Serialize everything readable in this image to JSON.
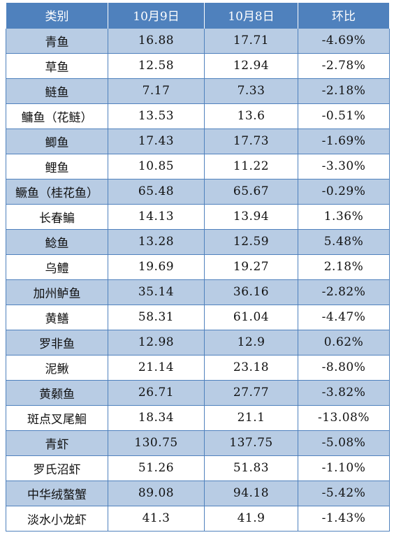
{
  "table": {
    "headers": [
      "类别",
      "10月9日",
      "10月8日",
      "环比"
    ],
    "rows": [
      [
        "青鱼",
        "16.88",
        "17.71",
        "-4.69%"
      ],
      [
        "草鱼",
        "12.58",
        "12.94",
        "-2.78%"
      ],
      [
        "鲢鱼",
        "7.17",
        "7.33",
        "-2.18%"
      ],
      [
        "鳙鱼（花鲢）",
        "13.53",
        "13.6",
        "-0.51%"
      ],
      [
        "鲫鱼",
        "17.43",
        "17.73",
        "-1.69%"
      ],
      [
        "鲤鱼",
        "10.85",
        "11.22",
        "-3.30%"
      ],
      [
        "鳜鱼（桂花鱼）",
        "65.48",
        "65.67",
        "-0.29%"
      ],
      [
        "长春鳊",
        "14.13",
        "13.94",
        "1.36%"
      ],
      [
        "鲶鱼",
        "13.28",
        "12.59",
        "5.48%"
      ],
      [
        "乌鳢",
        "19.69",
        "19.27",
        "2.18%"
      ],
      [
        "加州鲈鱼",
        "35.14",
        "36.16",
        "-2.82%"
      ],
      [
        "黄鳝",
        "58.31",
        "61.04",
        "-4.47%"
      ],
      [
        "罗非鱼",
        "12.98",
        "12.9",
        "0.62%"
      ],
      [
        "泥鳅",
        "21.14",
        "23.18",
        "-8.80%"
      ],
      [
        "黄颡鱼",
        "26.71",
        "27.77",
        "-3.82%"
      ],
      [
        "斑点叉尾鮰",
        "18.34",
        "21.1",
        "-13.08%"
      ],
      [
        "青虾",
        "130.75",
        "137.75",
        "-5.08%"
      ],
      [
        "罗氏沼虾",
        "51.26",
        "51.83",
        "-1.10%"
      ],
      [
        "中华绒螯蟹",
        "89.08",
        "94.18",
        "-5.42%"
      ],
      [
        "淡水小龙虾",
        "41.3",
        "41.9",
        "-1.43%"
      ]
    ]
  },
  "colors": {
    "header_bg": "#4f81bd",
    "header_text": "#ffffff",
    "band_bg": "#b8cce4",
    "plain_bg": "#ffffff",
    "border": "#4f81bd"
  }
}
